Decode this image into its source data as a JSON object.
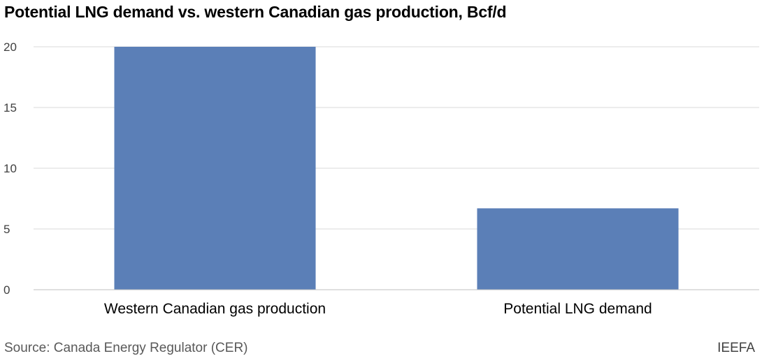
{
  "chart_data": {
    "type": "bar",
    "title": "Potential LNG demand vs. western Canadian gas production, Bcf/d",
    "categories": [
      "Western Canadian gas production",
      "Potential LNG demand"
    ],
    "values": [
      20.0,
      6.7
    ],
    "xlabel": "",
    "ylabel": "",
    "ylim": [
      0,
      20
    ],
    "yticks": [
      "0",
      "5",
      "10",
      "15",
      "20"
    ],
    "grid": true,
    "legend": "none",
    "bar_color": "#5b7fb7"
  },
  "footer": {
    "source": "Source: Canada Energy Regulator (CER)",
    "brand": "IEEFA"
  },
  "colors": {
    "gridline": "#d9d9d9",
    "axis": "#bfbfbf"
  }
}
